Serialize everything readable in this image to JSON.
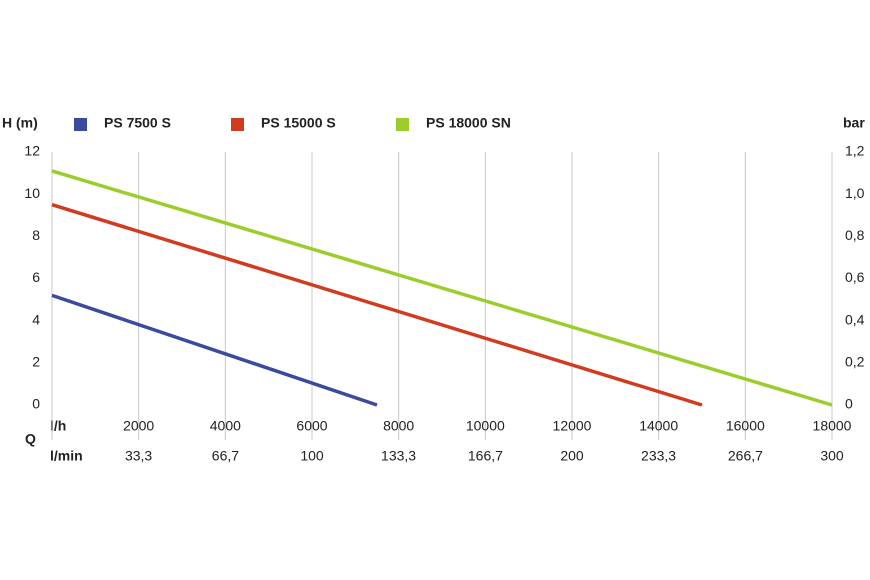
{
  "chart_data": {
    "type": "line",
    "ylabel": "H (m)",
    "y2label": "bar",
    "xlabel": "l/h",
    "x2label": "l/min",
    "quantity_label": "Q",
    "legend": "top",
    "grid": "x",
    "xlim": [
      0,
      18000
    ],
    "xticks": [
      2000,
      4000,
      6000,
      8000,
      10000,
      12000,
      14000,
      16000,
      18000
    ],
    "x2lim": [
      0,
      300
    ],
    "x2ticks": [
      {
        "value": 33.3,
        "label": "33,3"
      },
      {
        "value": 66.7,
        "label": "66,7"
      },
      100,
      {
        "value": 133.3,
        "label": "133,3"
      },
      {
        "value": 166.7,
        "label": "166,7"
      },
      200,
      {
        "value": 233.3,
        "label": "233,3"
      },
      {
        "value": 266.7,
        "label": "266,7"
      },
      300
    ],
    "ylim": [
      0,
      12
    ],
    "yticks": [
      0,
      2,
      4,
      6,
      8,
      10,
      12
    ],
    "y2lim": [
      0,
      1.2
    ],
    "y2ticks": [
      0,
      {
        "value": 0.2,
        "label": "0,2"
      },
      {
        "value": 0.4,
        "label": "0,4"
      },
      {
        "value": 0.6,
        "label": "0,6"
      },
      {
        "value": 0.8,
        "label": "0,8"
      },
      {
        "value": 1.0,
        "label": "1,0"
      },
      {
        "value": 1.2,
        "label": "1,2"
      }
    ],
    "series": [
      {
        "name": "PS 7500 S",
        "color": "#3c4a9e",
        "x": [
          0,
          7500
        ],
        "values": [
          5.2,
          0
        ]
      },
      {
        "name": "PS 15000 S",
        "color": "#d13b1f",
        "x": [
          0,
          15000
        ],
        "values": [
          9.5,
          0
        ]
      },
      {
        "name": "PS 18000 SN",
        "color": "#9ccd2c",
        "x": [
          0,
          18000
        ],
        "values": [
          11.1,
          0
        ]
      }
    ]
  }
}
